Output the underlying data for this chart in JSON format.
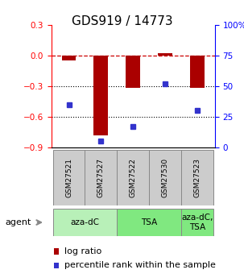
{
  "title": "GDS919 / 14773",
  "samples": [
    "GSM27521",
    "GSM27527",
    "GSM27522",
    "GSM27530",
    "GSM27523"
  ],
  "log_ratios": [
    -0.05,
    -0.78,
    -0.32,
    0.02,
    -0.32
  ],
  "percentile_ranks": [
    35,
    5,
    17,
    52,
    30
  ],
  "ylim_left": [
    -0.9,
    0.3
  ],
  "ylim_right": [
    0,
    100
  ],
  "yticks_left": [
    0.3,
    0.0,
    -0.3,
    -0.6,
    -0.9
  ],
  "yticks_right": [
    100,
    75,
    50,
    25,
    0
  ],
  "bar_color": "#aa0000",
  "dot_color": "#3333cc",
  "bar_width": 0.45,
  "agent_groups": [
    {
      "start": 0,
      "end": 1,
      "label": "aza-dC",
      "color": "#b8f0b8"
    },
    {
      "start": 2,
      "end": 3,
      "label": "TSA",
      "color": "#80e880"
    },
    {
      "start": 4,
      "end": 4,
      "label": "aza-dC,\nTSA",
      "color": "#80e880"
    }
  ],
  "sample_box_color": "#cccccc",
  "background_color": "#ffffff",
  "title_fontsize": 11,
  "tick_fontsize": 7.5,
  "legend_fontsize": 8
}
